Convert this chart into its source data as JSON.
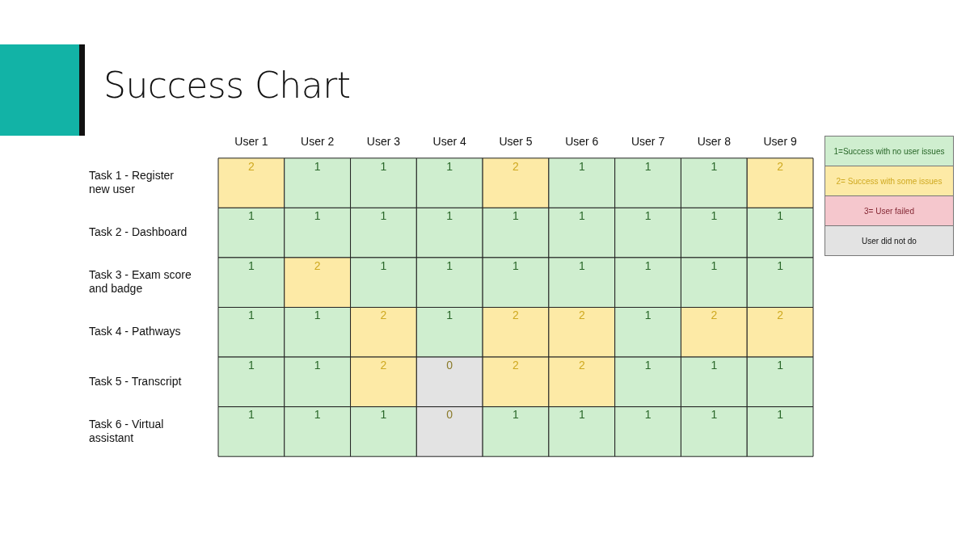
{
  "chart_data": {
    "type": "heatmap",
    "title": "Success Chart",
    "categories": [
      "User 1",
      "User 2",
      "User 3",
      "User 4",
      "User 5",
      "User 6",
      "User 7",
      "User 8",
      "User 9"
    ],
    "y_categories": [
      "Task 1 - Register new user",
      "Task 2 - Dashboard",
      "Task 3 - Exam score and badge",
      "Task 4 - Pathways",
      "Task 5 - Transcript",
      "Task 6 - Virtual assistant"
    ],
    "cells": [
      [
        2,
        1,
        1,
        1,
        2,
        1,
        1,
        1,
        2
      ],
      [
        1,
        1,
        1,
        1,
        1,
        1,
        1,
        1,
        1
      ],
      [
        1,
        2,
        1,
        1,
        1,
        1,
        1,
        1,
        1
      ],
      [
        1,
        1,
        2,
        1,
        2,
        2,
        1,
        2,
        2
      ],
      [
        1,
        1,
        2,
        null,
        2,
        2,
        1,
        1,
        1
      ],
      [
        1,
        1,
        1,
        null,
        1,
        1,
        1,
        1,
        1
      ]
    ],
    "cell_labels": [
      [
        "2",
        "1",
        "1",
        "1",
        "2",
        "1",
        "1",
        "1",
        "2"
      ],
      [
        "1",
        "1",
        "1",
        "1",
        "1",
        "1",
        "1",
        "1",
        "1"
      ],
      [
        "1",
        "2",
        "1",
        "1",
        "1",
        "1",
        "1",
        "1",
        "1"
      ],
      [
        "1",
        "1",
        "2",
        "1",
        "2",
        "2",
        "1",
        "2",
        "2"
      ],
      [
        "1",
        "1",
        "2",
        "0",
        "2",
        "2",
        "1",
        "1",
        "1"
      ],
      [
        "1",
        "1",
        "1",
        "0",
        "1",
        "1",
        "1",
        "1",
        "1"
      ]
    ],
    "clim": [
      1,
      3
    ],
    "colors": [
      "#cfeecf",
      "#fdeaa6",
      "#f5c7cd",
      "#e3e3e3"
    ],
    "cticks": [
      {
        "value": 1,
        "label": "1=Success with no user issues"
      },
      {
        "value": 2,
        "label": "2= Success with some issues"
      },
      {
        "value": 3,
        "label": "3= User failed"
      }
    ],
    "annotations": [
      "User did not do"
    ]
  }
}
